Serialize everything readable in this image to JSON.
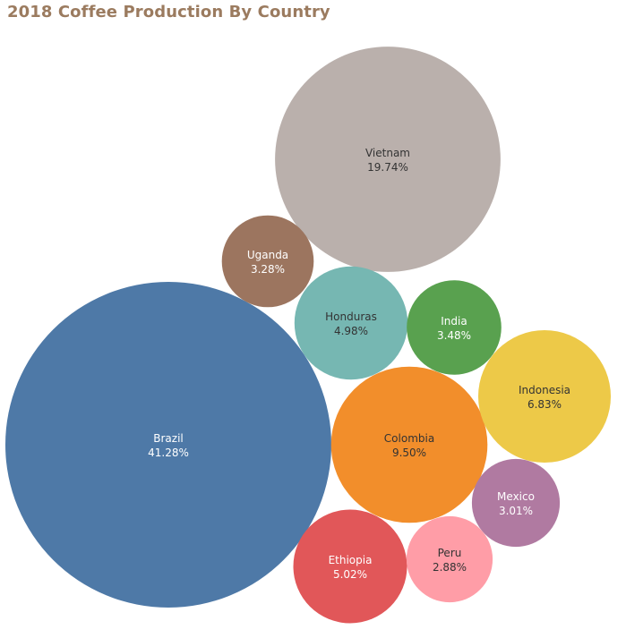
{
  "chart_data": {
    "type": "bubble",
    "title": "2018 Coffee Production By Country",
    "series": [
      {
        "name": "Brazil",
        "label": "41.28%",
        "value": 41.28,
        "color": "#4e79a7",
        "text_color": "#ffffff"
      },
      {
        "name": "Vietnam",
        "label": "19.74%",
        "value": 19.74,
        "color": "#bab0ac",
        "text_color": "#333333"
      },
      {
        "name": "Colombia",
        "label": "9.50%",
        "value": 9.5,
        "color": "#f28e2b",
        "text_color": "#333333"
      },
      {
        "name": "Indonesia",
        "label": "6.83%",
        "value": 6.83,
        "color": "#edc948",
        "text_color": "#333333"
      },
      {
        "name": "Ethiopia",
        "label": "5.02%",
        "value": 5.02,
        "color": "#e15759",
        "text_color": "#ffffff"
      },
      {
        "name": "Honduras",
        "label": "4.98%",
        "value": 4.98,
        "color": "#76b7b2",
        "text_color": "#333333"
      },
      {
        "name": "India",
        "label": "3.48%",
        "value": 3.48,
        "color": "#59a14f",
        "text_color": "#ffffff"
      },
      {
        "name": "Uganda",
        "label": "3.28%",
        "value": 3.28,
        "color": "#9c755f",
        "text_color": "#ffffff"
      },
      {
        "name": "Mexico",
        "label": "3.01%",
        "value": 3.01,
        "color": "#b07aa1",
        "text_color": "#ffffff"
      },
      {
        "name": "Peru",
        "label": "2.88%",
        "value": 2.88,
        "color": "#ff9da7",
        "text_color": "#333333"
      }
    ]
  }
}
